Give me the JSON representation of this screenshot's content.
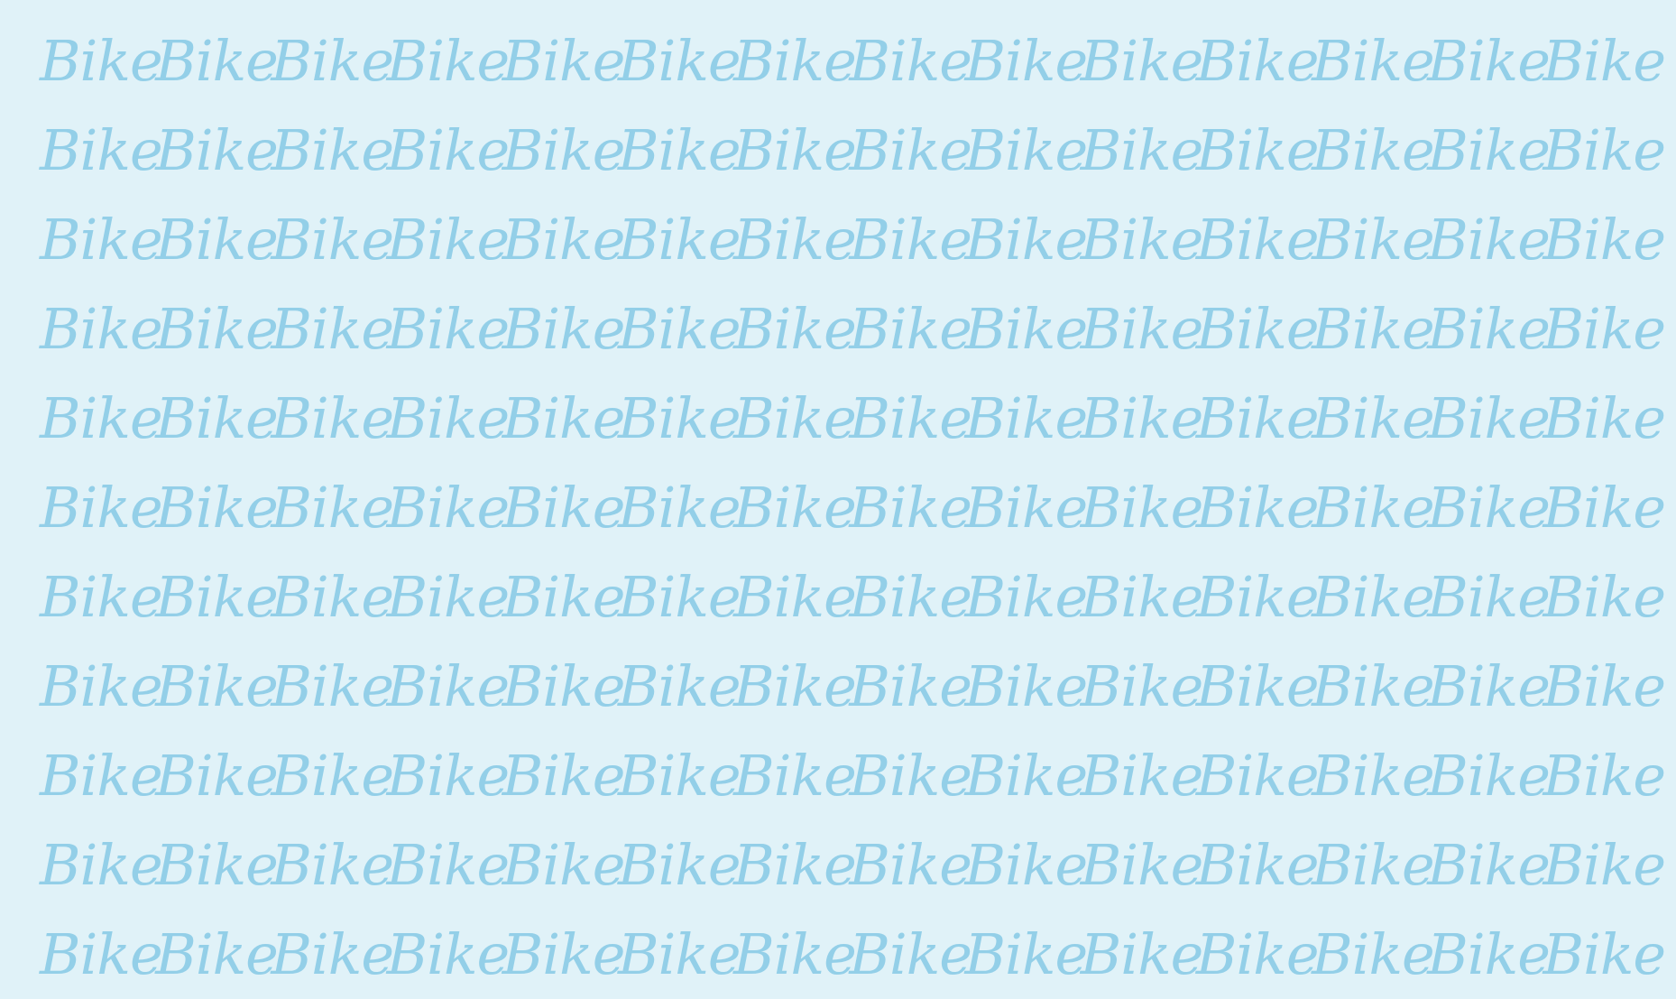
{
  "puzzle": {
    "word": "Bike",
    "rows": 11,
    "columns": 14,
    "colors": {
      "background": "#e0f2f8",
      "text": "#93cfe8"
    }
  }
}
